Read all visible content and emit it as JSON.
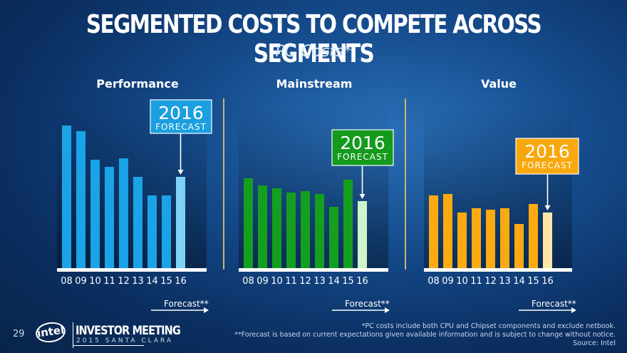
{
  "header": {
    "title": "Segmented Costs to Compete Across Segments",
    "subtitle": "PC Costs*"
  },
  "chart_data": [
    {
      "type": "bar",
      "title": "Performance",
      "categories": [
        "08",
        "09",
        "10",
        "11",
        "12",
        "13",
        "14",
        "15",
        "16"
      ],
      "values": [
        100,
        96,
        76,
        71,
        77,
        64,
        51,
        51,
        64
      ],
      "forecast_index": 8,
      "ylim": [
        0,
        105
      ],
      "color": "#1aa3e6",
      "forecast_color": "#7fd3f7",
      "callout": {
        "year": "2016",
        "label": "FORECAST",
        "color": "#1a9fe0"
      },
      "forecast_note": "Forecast**"
    },
    {
      "type": "bar",
      "title": "Mainstream",
      "categories": [
        "08",
        "09",
        "10",
        "11",
        "12",
        "13",
        "14",
        "15",
        "16"
      ],
      "values": [
        63,
        58,
        56,
        53,
        54,
        52,
        43,
        62,
        47
      ],
      "forecast_index": 8,
      "ylim": [
        0,
        105
      ],
      "color": "#14a01e",
      "forecast_color": "#cef5c9",
      "callout": {
        "year": "2016",
        "label": "FORECAST",
        "color": "#149a1c"
      },
      "forecast_note": "Forecast**"
    },
    {
      "type": "bar",
      "title": "Value",
      "categories": [
        "08",
        "09",
        "10",
        "11",
        "12",
        "13",
        "14",
        "15",
        "16"
      ],
      "values": [
        51,
        52,
        39,
        42,
        41,
        42,
        31,
        45,
        39
      ],
      "forecast_index": 8,
      "ylim": [
        0,
        105
      ],
      "color": "#fbab11",
      "forecast_color": "#fbe6a8",
      "callout": {
        "year": "2016",
        "label": "FORECAST",
        "color": "#f7a80c"
      },
      "forecast_note": "Forecast**"
    }
  ],
  "footer": {
    "page_number": "29",
    "logo_text": "intel",
    "event_title": "INVESTOR MEETING",
    "event_subtitle": "2015 SANTA CLARA",
    "footnote1": "*PC costs include both CPU and Chipset components and exclude netbook.",
    "footnote2": "**Forecast is based on current expectations given available information and is subject to change without notice.",
    "source": "Source: Intel"
  }
}
